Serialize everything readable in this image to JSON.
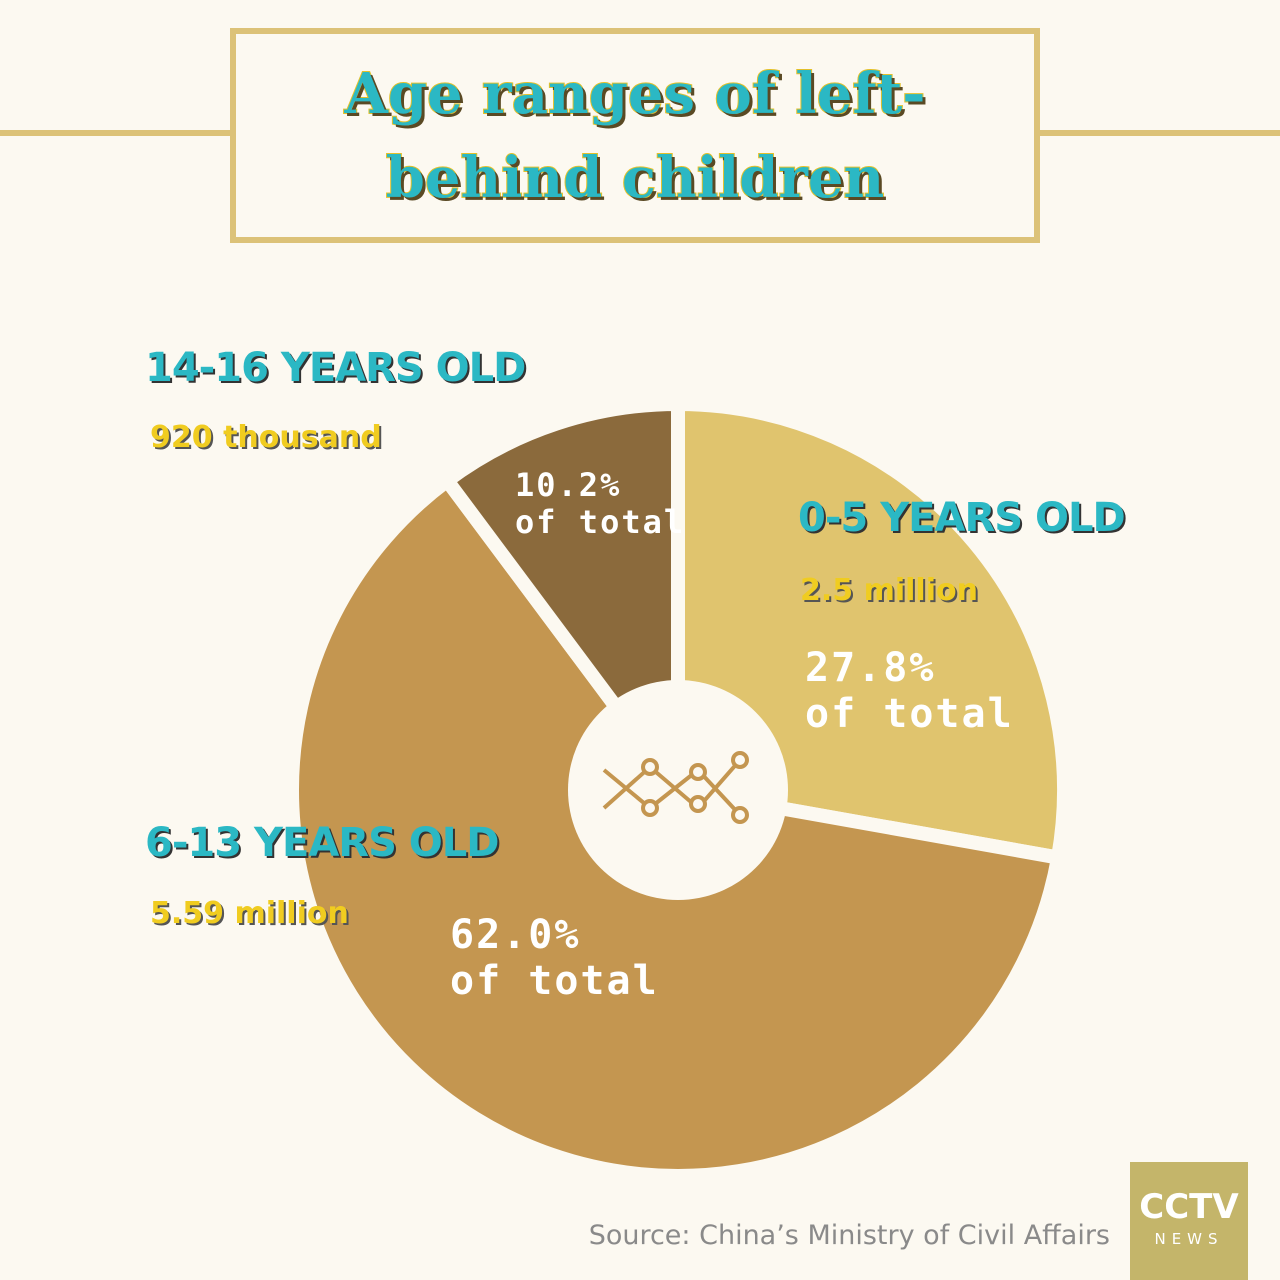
{
  "chart_data": {
    "type": "pie",
    "title": "Age ranges of left-behind children",
    "categories": [
      "0-5 YEARS OLD",
      "6-13 YEARS OLD",
      "14-16 YEARS OLD"
    ],
    "amounts": [
      "2.5 million",
      "5.59 million",
      "920 thousand"
    ],
    "values": [
      27.8,
      62.0,
      10.2
    ],
    "value_labels": [
      "27.8%",
      "62.0%",
      "10.2%"
    ],
    "value_label_note": "of total",
    "colors": [
      "#e0c46e",
      "#c49650",
      "#8b6a3c"
    ],
    "source": "Source: China’s Ministry of Civil Affairs",
    "logo": [
      "CCTV",
      "NEWS"
    ]
  }
}
